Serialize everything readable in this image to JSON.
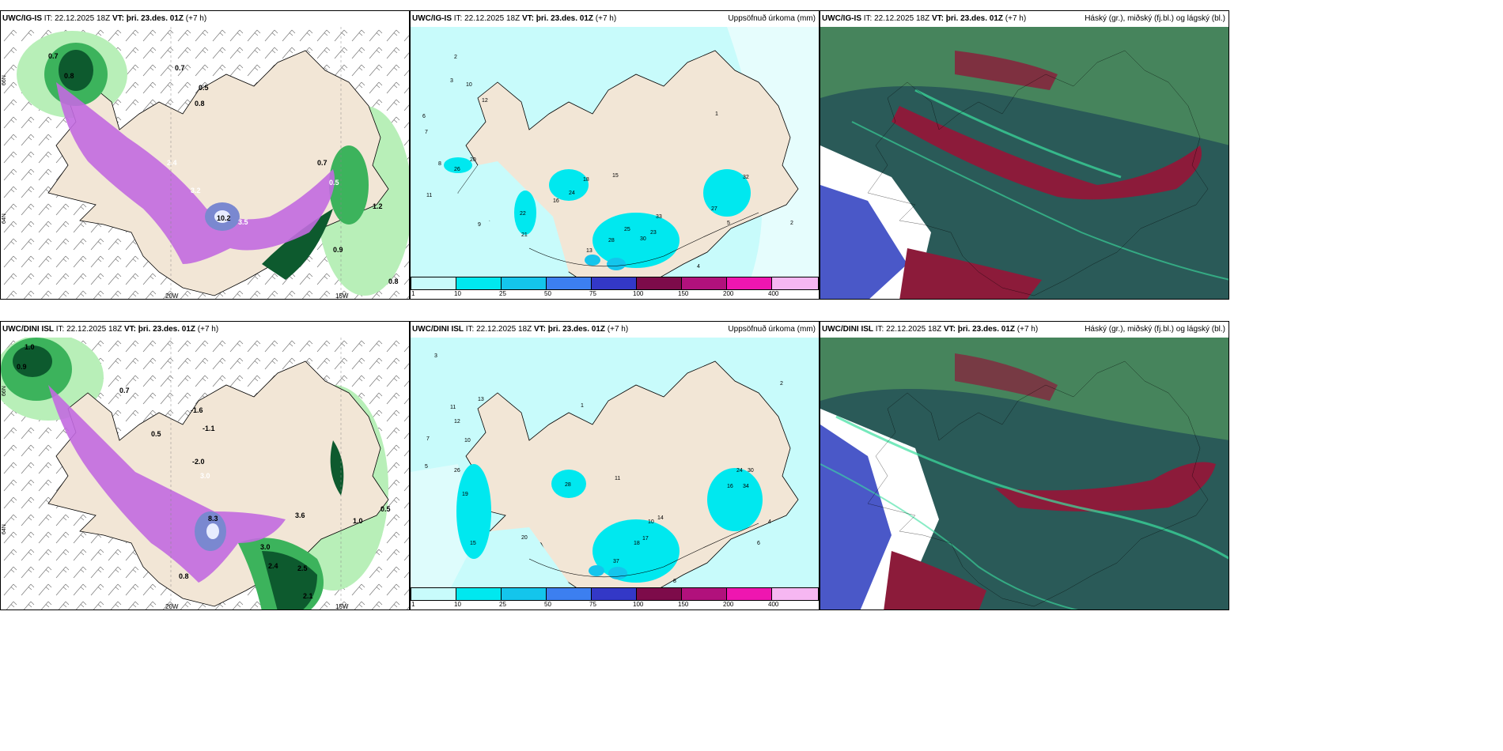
{
  "rows": [
    {
      "model": "UWC/IG-IS",
      "precip_left_labels": [
        "0.7",
        "0.8",
        "0.7",
        "0.5",
        "0.8",
        "2.4",
        "3.2",
        "10.2",
        "3.5",
        "0.5",
        "0.7",
        "1.2",
        "0.9",
        "0.8"
      ],
      "accum_labels": [
        "2",
        "3",
        "10",
        "12",
        "8",
        "6",
        "7",
        "20",
        "26",
        "11",
        "9",
        "22",
        "21",
        "16",
        "24",
        "18",
        "13",
        "15",
        "25",
        "28",
        "30",
        "23",
        "33",
        "32",
        "27",
        "4",
        "1",
        "2",
        "5"
      ]
    },
    {
      "model": "UWC/DINI ISL",
      "precip_left_labels": [
        "1.0",
        "0.9",
        "0.7",
        "0.5",
        "-1.6",
        "-1.1",
        "-2.0",
        "3.0",
        "8.3",
        "3.6",
        "3.0",
        "2.4",
        "2.5",
        "1.0",
        "0.5",
        "2.1",
        "0.8"
      ],
      "accum_labels": [
        "3",
        "11",
        "13",
        "12",
        "10",
        "7",
        "5",
        "26",
        "19",
        "15",
        "20",
        "28",
        "11",
        "10",
        "14",
        "18",
        "16",
        "17",
        "37",
        "24",
        "30",
        "34",
        "1",
        "2",
        "4",
        "6",
        "8"
      ]
    }
  ],
  "header": {
    "it_label": "IT:",
    "it_value": "22.12.2025 18Z",
    "vt_label": "VT:",
    "vt_value": "þri. 23.des. 01Z",
    "lead": "(+7 h)"
  },
  "middle_title": "Uppsöfnuð úrkoma (mm)",
  "right_title": "Háský (gr.), miðský (fj.bl.) og lágský (bl.)",
  "grid_labels": {
    "lon_20w": "20W",
    "lon_15w": "15W",
    "lat_66n": "66N",
    "lat_64n": "64N"
  },
  "colorbar": {
    "ticks": [
      "1",
      "10",
      "25",
      "50",
      "75",
      "100",
      "150",
      "200",
      "400"
    ],
    "colors": [
      "#c8fbfb",
      "#00e8ef",
      "#14c5ec",
      "#3c7ff0",
      "#3338c7",
      "#7d0b4a",
      "#b1117c",
      "#ee16b0",
      "#f6b7f2"
    ]
  },
  "colors": {
    "land": "#f2e6d6",
    "wind_green_light": "#b8efb8",
    "wind_green": "#3cb35c",
    "wind_green_dark": "#0d5a2e",
    "precip_purple": "#c26ae0",
    "precip_blue": "#7a88d0",
    "cloud_dark": "#2a5a58",
    "cloud_green": "#46845c",
    "cloud_red": "#8c1b3a",
    "cloud_blue": "#4a58c8"
  }
}
